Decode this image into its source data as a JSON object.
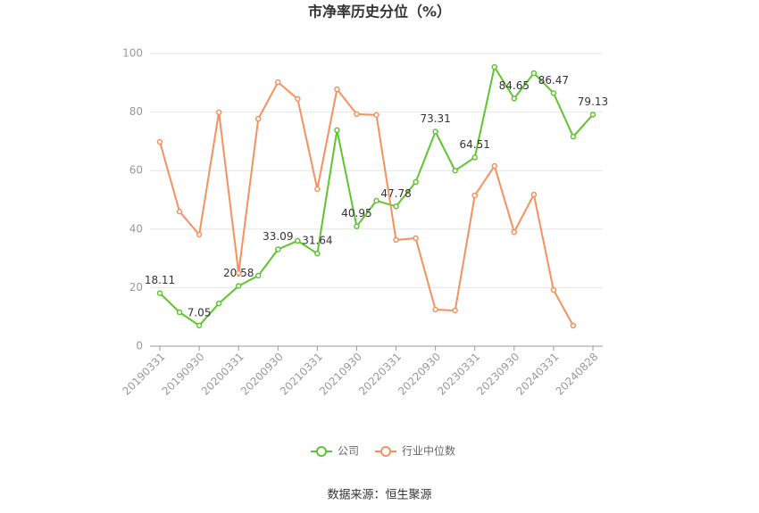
{
  "chart_data": {
    "type": "line",
    "title": "市净率历史分位（%）",
    "categories": [
      "20190331",
      null,
      "20190930",
      null,
      "20200331",
      null,
      "20200930",
      null,
      "20210331",
      null,
      "20210930",
      null,
      "20220331",
      null,
      "20220930",
      null,
      "20230331",
      null,
      "20230930",
      null,
      "20240331",
      null,
      "20240828"
    ],
    "series": [
      {
        "name": "公司",
        "color": "#5ec52f",
        "values": [
          18.11,
          11.6,
          7.05,
          14.6,
          20.58,
          24.1,
          33.09,
          36,
          31.64,
          73.8,
          40.95,
          49.7,
          47.78,
          56.1,
          73.31,
          60,
          64.51,
          95.4,
          84.65,
          93.3,
          86.47,
          71.6,
          79.13
        ]
      },
      {
        "name": "行业中位数",
        "color": "#f7905e",
        "values": [
          69.8,
          46,
          38.1,
          79.9,
          25,
          77.7,
          90.2,
          84.5,
          53.7,
          87.8,
          79.3,
          79,
          36.3,
          36.9,
          12.5,
          12.2,
          51.5,
          61.6,
          39,
          51.8,
          19.2,
          7,
          null
        ]
      }
    ],
    "ylim": [
      0,
      100
    ],
    "yticks": [
      0,
      20,
      40,
      60,
      80,
      100
    ],
    "grid": true,
    "source": "数据来源：恒生聚源"
  }
}
